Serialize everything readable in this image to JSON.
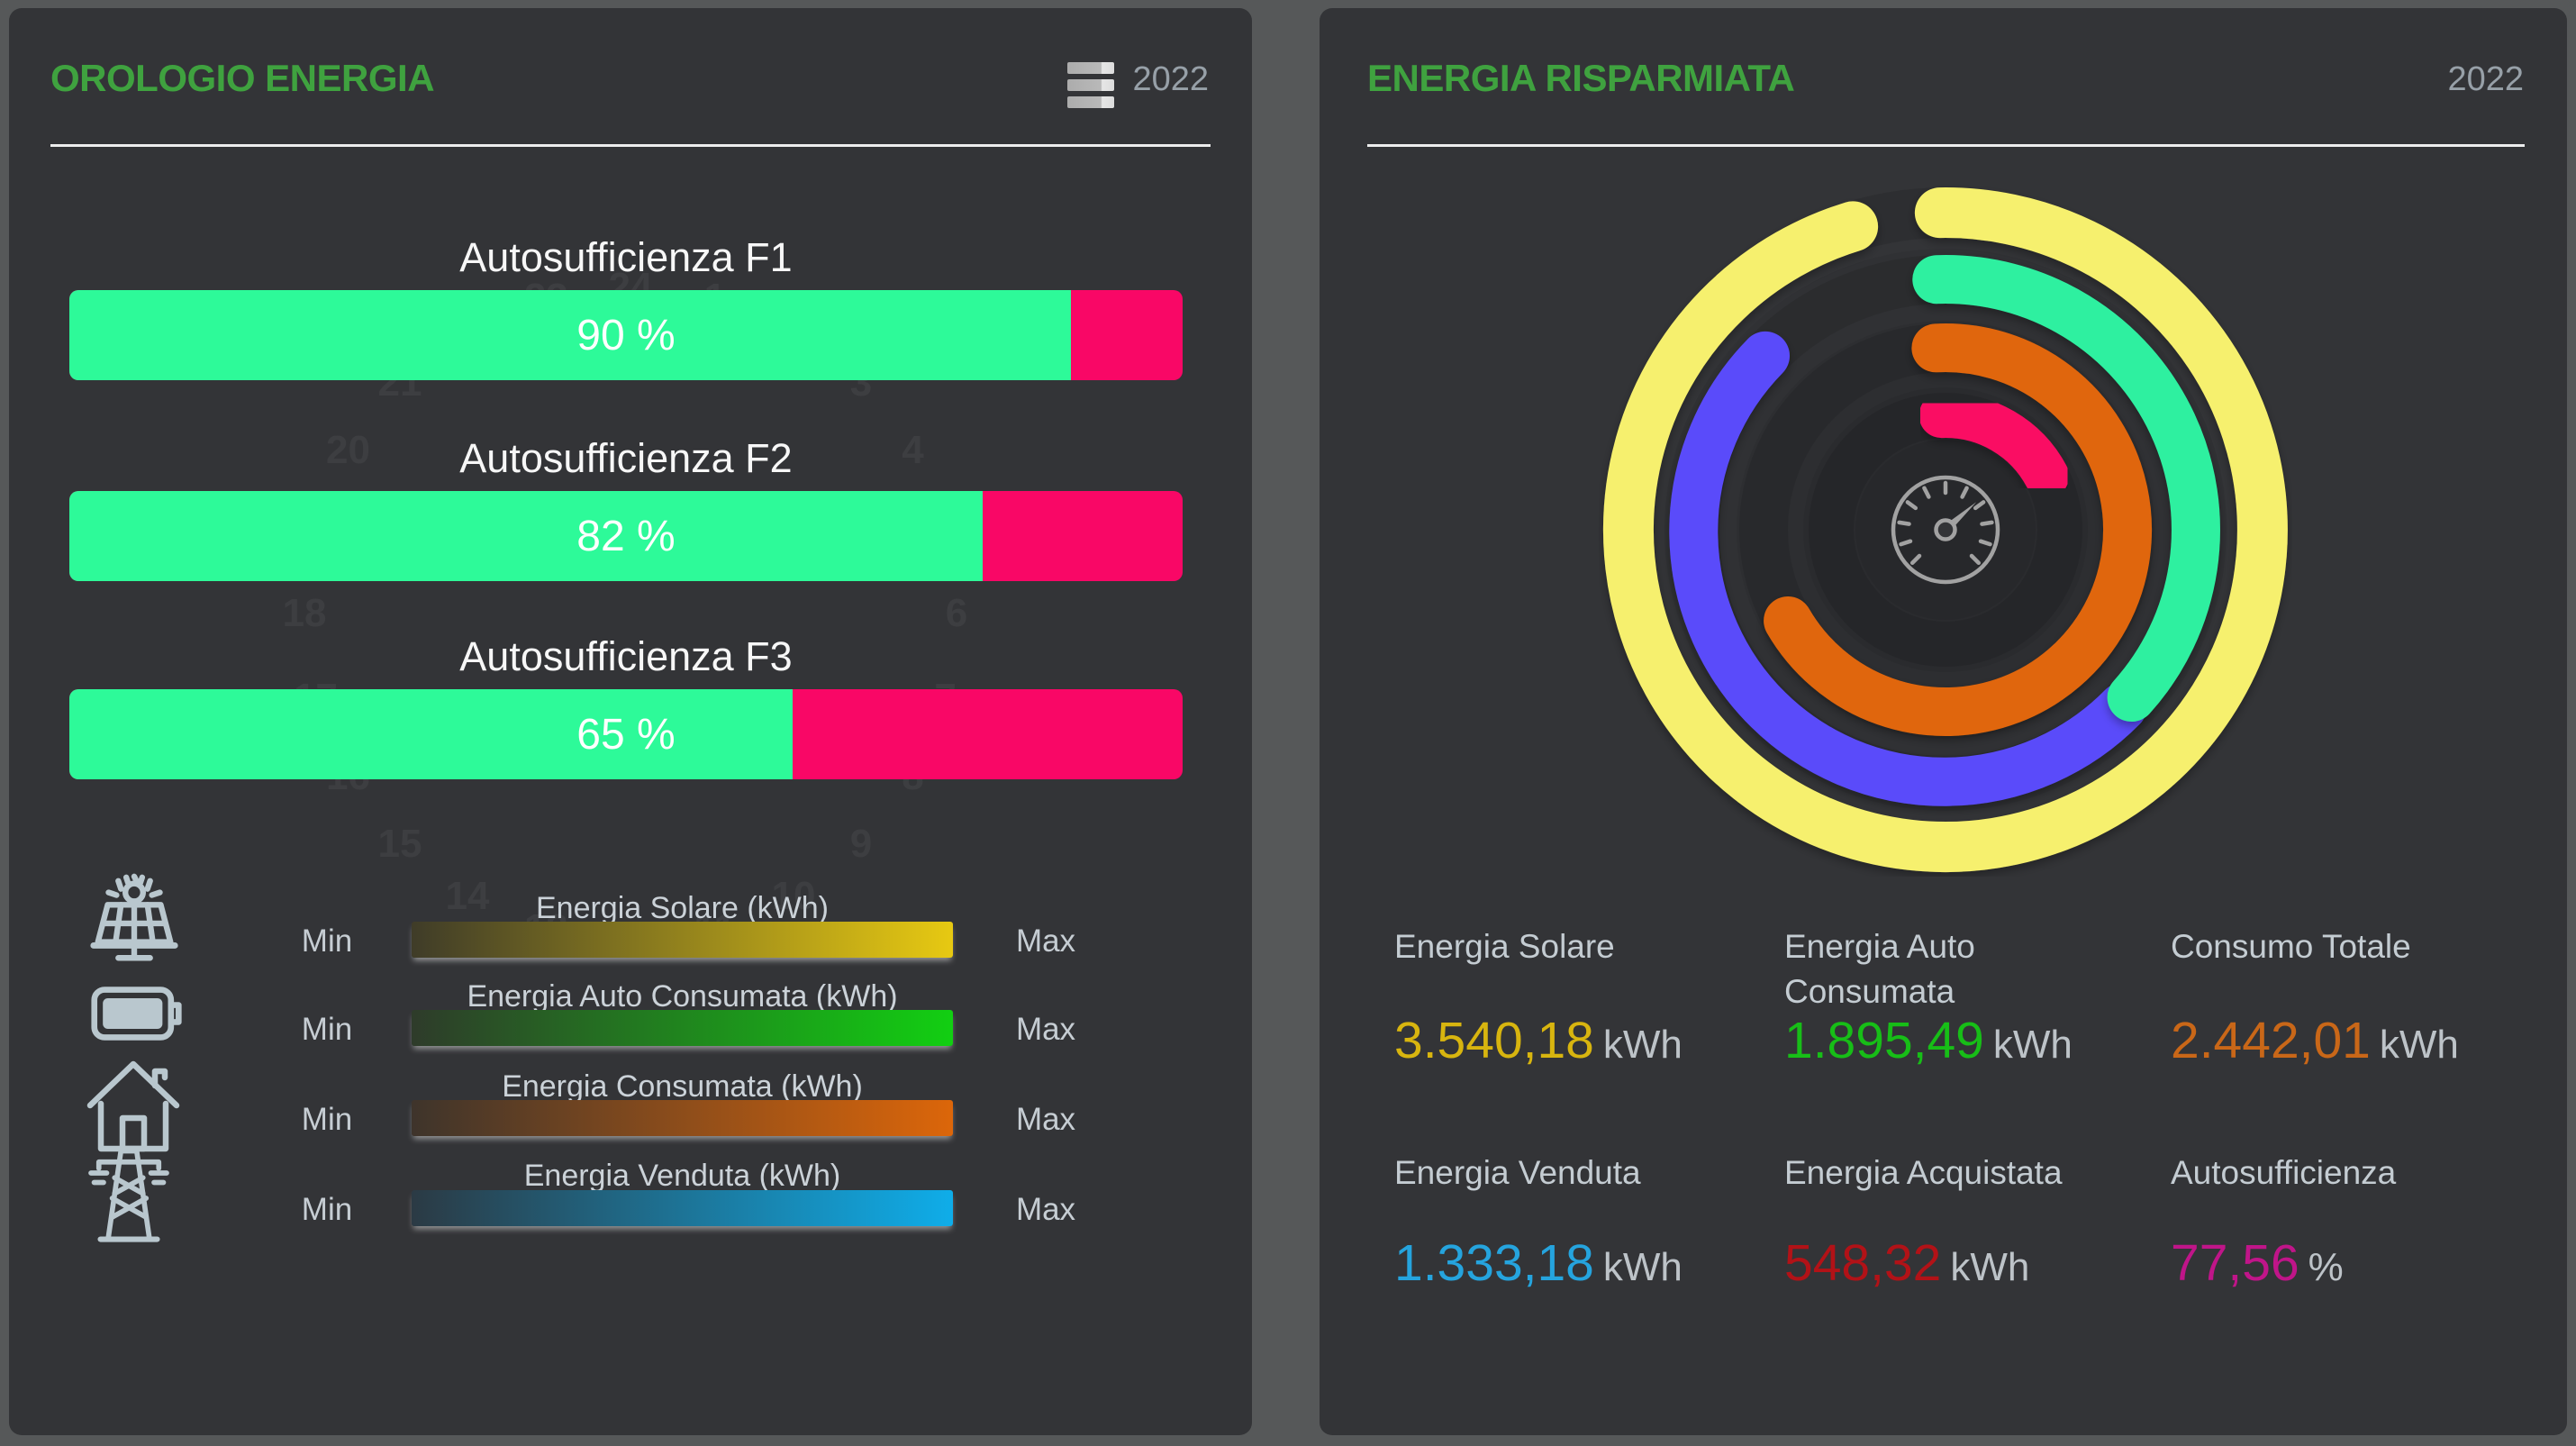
{
  "colors": {
    "page_background": "#565859",
    "panel_background": "#333437",
    "header_green": "#3FA23F",
    "divider": "#EDEDED",
    "year_gray": "#97A0A8",
    "bar_fill_green": "#2DFA99",
    "bar_remainder_pink": "#F90766"
  },
  "left": {
    "title": "OROLOGIO ENERGIA",
    "year": "2022",
    "menu_icon": "hamburger-menu-icon",
    "legends": [
      {
        "label": "Energia Solare (kWh)",
        "min": "Min",
        "max": "Max",
        "gradient": [
          "#3F3C28",
          "#E7C912"
        ],
        "icon": "solar-panel-icon"
      },
      {
        "label": "Energia Auto Consumata (kWh)",
        "min": "Min",
        "max": "Max",
        "gradient": [
          "#2E3B2A",
          "#12CF12"
        ],
        "icon": "battery-icon"
      },
      {
        "label": "Energia Consumata (kWh)",
        "min": "Min",
        "max": "Max",
        "gradient": [
          "#3E342B",
          "#DC660A"
        ],
        "icon": "house-icon"
      },
      {
        "label": "Energia Venduta (kWh)",
        "min": "Min",
        "max": "Max",
        "gradient": [
          "#2B3A44",
          "#0FADE9"
        ],
        "icon": "power-tower-icon"
      }
    ]
  },
  "right": {
    "title": "ENERGIA RISPARMIATA",
    "year": "2022"
  },
  "chart_data": [
    {
      "type": "bar",
      "title": "OROLOGIO ENERGIA",
      "categories": [
        "Autosufficienza F1",
        "Autosufficienza F2",
        "Autosufficienza F3"
      ],
      "values": [
        90,
        82,
        65
      ],
      "value_labels": [
        "90 %",
        "82 %",
        "65 %"
      ],
      "unit": "%",
      "xlim": [
        0,
        100
      ],
      "bar_color": "#2DFA99",
      "remainder_color": "#F90766",
      "orientation": "horizontal"
    },
    {
      "type": "ring-gauge",
      "title": "ENERGIA RISPARMIATA",
      "center_icon": "speedometer-icon",
      "rings": [
        {
          "name": "energia-solare",
          "color": "#F6F06E",
          "radius": 352,
          "width": 56,
          "start_deg": 359,
          "sweep_deg": 344
        },
        {
          "name": "energia-venduta",
          "color": "#5A4BFA",
          "radius": 278,
          "width": 54,
          "start_deg": 135,
          "sweep_deg": 179
        },
        {
          "name": "energia-auto-consumata",
          "color": "#2EF0A0",
          "radius": 278,
          "width": 54,
          "start_deg": 358,
          "sweep_deg": 134
        },
        {
          "name": "energia-consumata",
          "color": "#E0660A",
          "radius": 202,
          "width": 54,
          "start_deg": 357,
          "sweep_deg": 243
        },
        {
          "name": "autosufficienza",
          "color": "#FA0A64",
          "radius": 127,
          "width": 50,
          "start_deg": 358,
          "sweep_deg": 64
        }
      ],
      "metrics": [
        {
          "label": "Energia Solare",
          "value": "3.540,18",
          "unit": "kWh",
          "color": "#D8B50F"
        },
        {
          "label": "Energia Auto\nConsumata",
          "value": "1.895,49",
          "unit": "kWh",
          "color": "#17BE17"
        },
        {
          "label": "Consumo Totale",
          "value": "2.442,01",
          "unit": "kWh",
          "color": "#C96718"
        },
        {
          "label": "Energia Venduta",
          "value": "1.333,18",
          "unit": "kWh",
          "color": "#25A4DE"
        },
        {
          "label": "Energia Acquistata",
          "value": "548,32",
          "unit": "kWh",
          "color": "#B21217"
        },
        {
          "label": "Autosufficienza",
          "value": "77,56",
          "unit": "%",
          "color": "#C01589"
        }
      ]
    }
  ]
}
